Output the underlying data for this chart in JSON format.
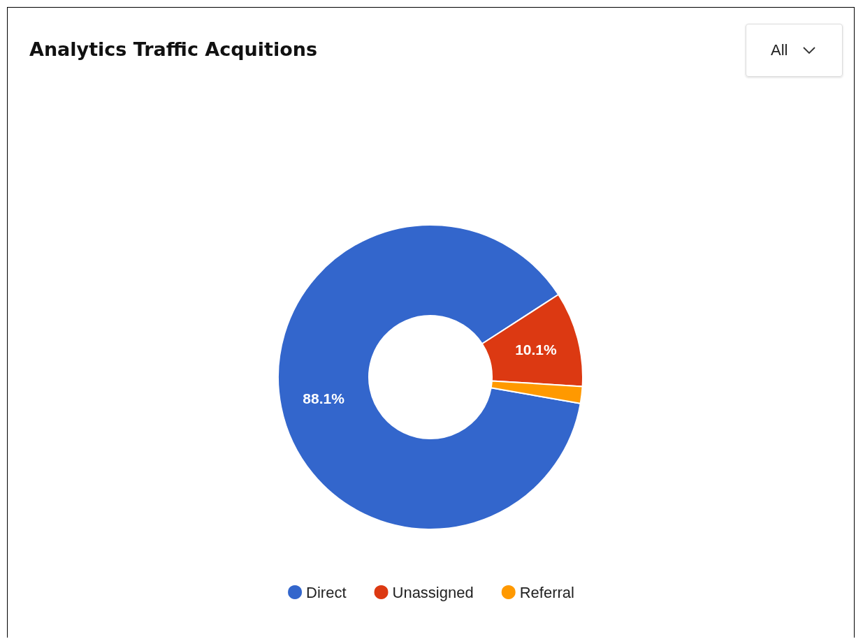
{
  "chart_data": {
    "type": "donut",
    "title": "Analytics Traffic Acquitions",
    "categories": [
      "Direct",
      "Unassigned",
      "Referral"
    ],
    "values": [
      88.1,
      10.1,
      1.8
    ],
    "colors": [
      "#3366cc",
      "#dc3912",
      "#ff9900"
    ],
    "value_labels": [
      "88.1%",
      "10.1%",
      null
    ],
    "legend": "bottom",
    "annotations": [
      "All"
    ]
  }
}
